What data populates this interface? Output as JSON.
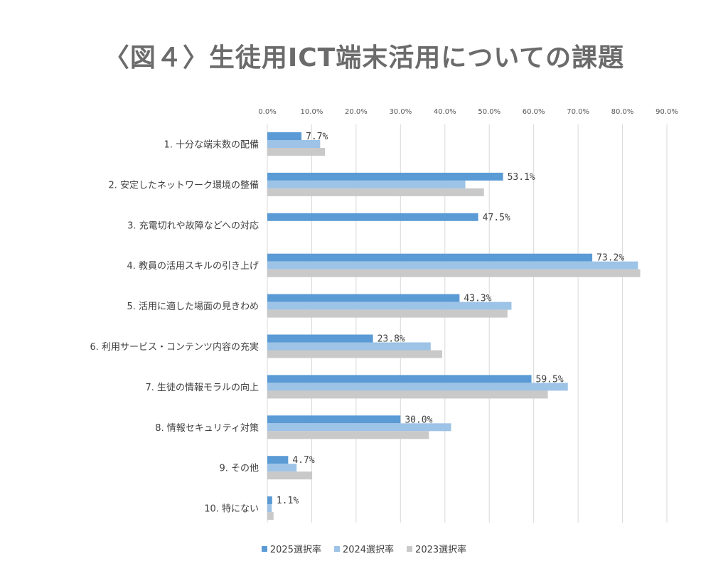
{
  "chart_data": {
    "type": "bar",
    "orientation": "horizontal",
    "title": "〈図４〉生徒用ICT端末活用についての課題",
    "xlim": [
      0,
      90
    ],
    "x_tick_labels": [
      "0.0%",
      "10.0%",
      "20.0%",
      "30.0%",
      "40.0%",
      "50.0%",
      "60.0%",
      "70.0%",
      "80.0%",
      "90.0%"
    ],
    "x_axis_position": "top",
    "grid": true,
    "legend_position": "bottom",
    "categories": [
      "1.  十分な端末数の配備",
      "2.  安定したネットワーク環境の整備",
      "3.  充電切れや故障などへの対応",
      "4.  教員の活用スキルの引き上げ",
      "5.  活用に適した場面の見きわめ",
      "6.  利用サービス・コンテンツ内容の充実",
      "7.  生徒の情報モラルの向上",
      "8.  情報セキュリティ対策",
      "9.  その他",
      "10.  特にない"
    ],
    "series": [
      {
        "name": "2025選択率",
        "color": "#5b9bd5",
        "values": [
          7.7,
          53.1,
          47.5,
          73.2,
          43.3,
          23.8,
          59.5,
          30.0,
          4.7,
          1.1
        ],
        "data_labels": [
          "7.7%",
          "53.1%",
          "47.5%",
          "73.2%",
          "43.3%",
          "23.8%",
          "59.5%",
          "30.0%",
          "4.7%",
          "1.1%"
        ]
      },
      {
        "name": "2024選択率",
        "color": "#9dc3e6",
        "values": [
          11.9,
          44.6,
          0,
          83.5,
          55.0,
          36.8,
          67.7,
          41.4,
          6.6,
          1.0
        ]
      },
      {
        "name": "2023選択率",
        "color": "#c9c9c9",
        "values": [
          13.0,
          48.8,
          0,
          84.0,
          54.1,
          39.4,
          63.2,
          36.4,
          10.1,
          1.4
        ]
      }
    ]
  }
}
